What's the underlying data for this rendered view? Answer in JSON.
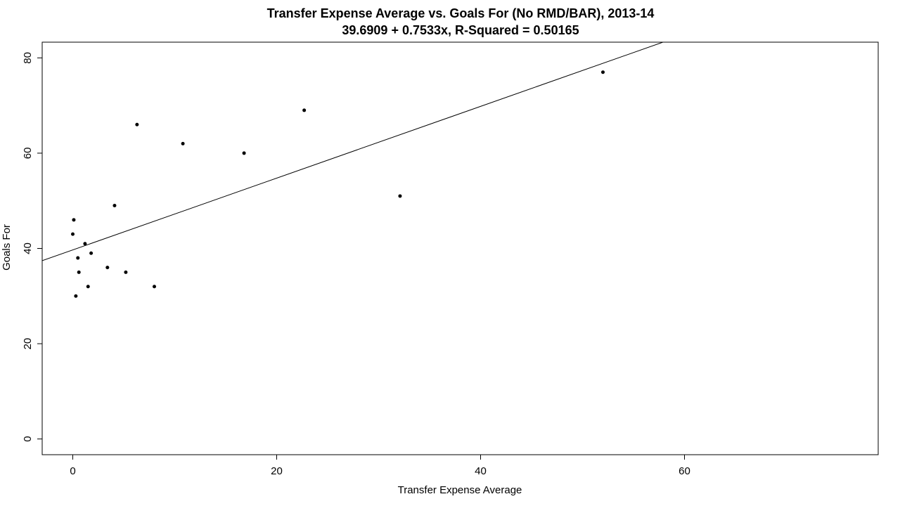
{
  "chart_data": {
    "type": "scatter",
    "title": "Transfer Expense Average vs. Goals For (No RMD/BAR), 2013-14",
    "subtitle": "39.6909 + 0.7533x, R-Squared = 0.50165",
    "xlabel": "Transfer Expense Average",
    "ylabel": "Goals For",
    "xlim": [
      -3,
      79
    ],
    "ylim": [
      -3.3,
      83.3
    ],
    "x_ticks": [
      0,
      20,
      40,
      60
    ],
    "y_ticks": [
      0,
      20,
      40,
      60,
      80
    ],
    "x_tick_labels": [
      "0",
      "20",
      "40",
      "60"
    ],
    "y_tick_labels": [
      "0",
      "20",
      "40",
      "60",
      "80"
    ],
    "grid": false,
    "legend": "none",
    "regression": {
      "intercept": 39.6909,
      "slope": 0.7533
    },
    "points": [
      {
        "x": 0.0,
        "y": 43
      },
      {
        "x": 0.1,
        "y": 46
      },
      {
        "x": 0.3,
        "y": 30
      },
      {
        "x": 0.5,
        "y": 38
      },
      {
        "x": 0.6,
        "y": 35
      },
      {
        "x": 1.2,
        "y": 41
      },
      {
        "x": 1.5,
        "y": 32
      },
      {
        "x": 1.8,
        "y": 39
      },
      {
        "x": 3.4,
        "y": 36
      },
      {
        "x": 4.1,
        "y": 49
      },
      {
        "x": 5.2,
        "y": 35
      },
      {
        "x": 6.3,
        "y": 66
      },
      {
        "x": 8.0,
        "y": 32
      },
      {
        "x": 10.8,
        "y": 62
      },
      {
        "x": 16.8,
        "y": 60
      },
      {
        "x": 22.7,
        "y": 69
      },
      {
        "x": 32.1,
        "y": 51
      },
      {
        "x": 52.0,
        "y": 77
      }
    ],
    "colors": {
      "points": "#000000",
      "line": "#000000",
      "axis": "#000000"
    }
  }
}
